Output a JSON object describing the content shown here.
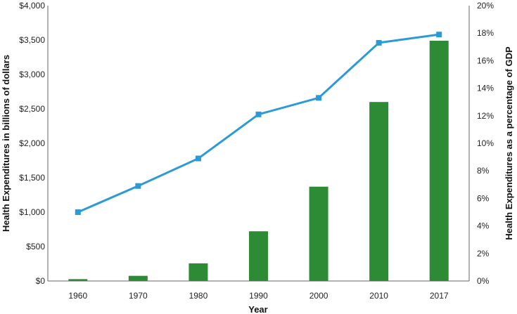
{
  "chart_data": {
    "type": "bar",
    "title": "",
    "xlabel": "Year",
    "ylabel_left": "Health Expenditures in billions of dollars",
    "ylabel_right": "Health Expenditures as a percentage of GDP",
    "categories": [
      "1960",
      "1970",
      "1980",
      "1990",
      "2000",
      "2010",
      "2017"
    ],
    "ylim_left": [
      0,
      4000
    ],
    "ylim_right": [
      0,
      20
    ],
    "y_left_ticks": [
      "$0",
      "$500",
      "$1,000",
      "$1,500",
      "$2,000",
      "$2,500",
      "$3,000",
      "$3,500",
      "$4,000"
    ],
    "y_right_ticks": [
      "0%",
      "2%",
      "4%",
      "6%",
      "8%",
      "10%",
      "12%",
      "14%",
      "16%",
      "18%",
      "20%"
    ],
    "grid": false,
    "legend": "none",
    "series": [
      {
        "type": "bar",
        "axis": "left",
        "color": "#2e8b35",
        "values": [
          27,
          75,
          256,
          722,
          1370,
          2600,
          3490
        ]
      },
      {
        "type": "line",
        "axis": "right",
        "color": "#2b9ad6",
        "marker": "square",
        "values": [
          5.0,
          6.9,
          8.9,
          12.1,
          13.3,
          17.3,
          17.9
        ]
      }
    ]
  }
}
